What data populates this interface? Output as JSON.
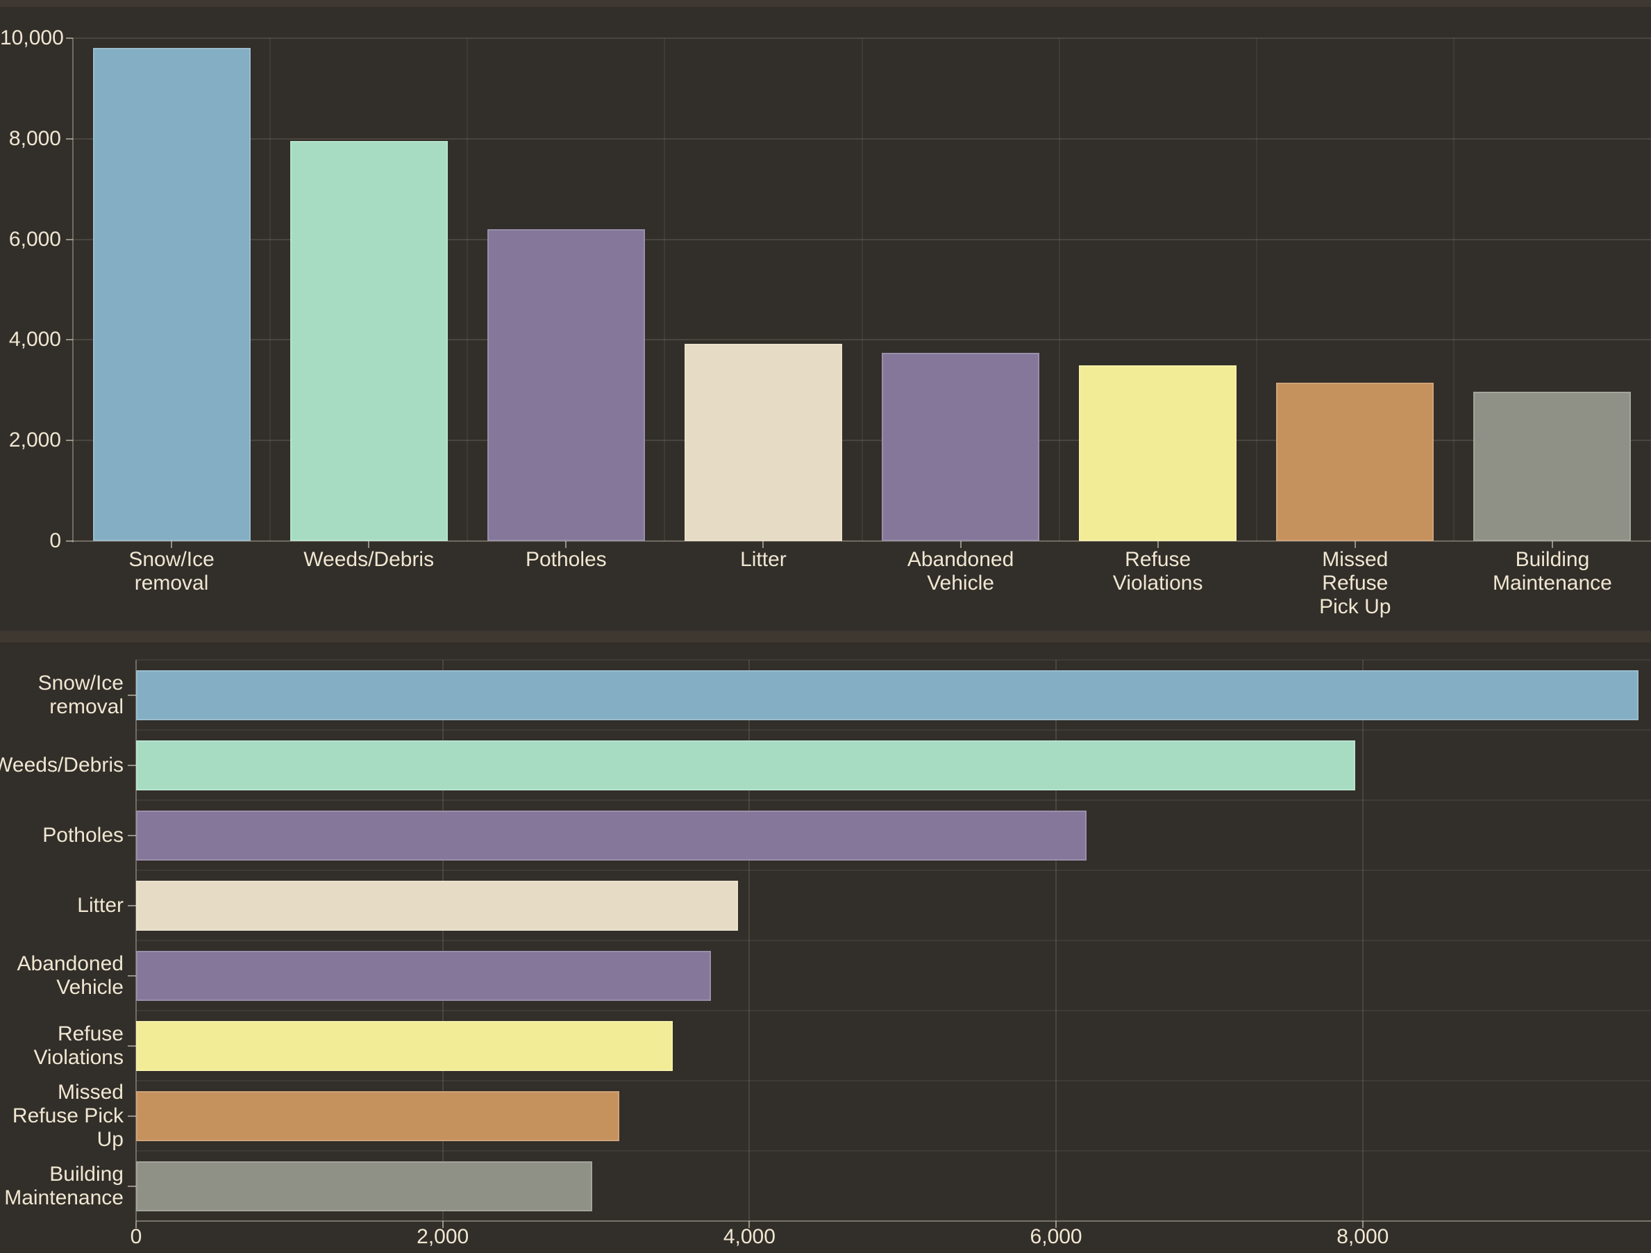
{
  "page": {
    "background": "#322e29",
    "panel_divider_color": "#3e3831",
    "text_color": "#f0e7d3",
    "gridline_color": "#4a453c"
  },
  "chart_data": [
    {
      "id": "top-column-chart",
      "type": "bar",
      "orientation": "vertical",
      "title": "",
      "xlabel": "",
      "ylabel": "",
      "categories": [
        "Snow/Ice removal",
        "Weeds/Debris",
        "Potholes",
        "Litter",
        "Abandoned Vehicle",
        "Refuse Violations",
        "Missed Refuse Pick Up",
        "Building Maintenance"
      ],
      "label_lines": [
        [
          "Snow/Ice",
          "removal"
        ],
        [
          "Weeds/Debris"
        ],
        [
          "Potholes"
        ],
        [
          "Litter"
        ],
        [
          "Abandoned",
          "Vehicle"
        ],
        [
          "Refuse",
          "Violations"
        ],
        [
          "Missed",
          "Refuse",
          "Pick Up"
        ],
        [
          "Building",
          "Maintenance"
        ]
      ],
      "values": [
        9800,
        7950,
        6200,
        3925,
        3750,
        3500,
        3150,
        2975
      ],
      "bar_colors": [
        "#84aec3",
        "#a8dcc2",
        "#847799",
        "#e6dbc4",
        "#847799",
        "#f2ec96",
        "#c5915c",
        "#8f9186"
      ],
      "ylim": [
        0,
        10000
      ],
      "yticks": [
        {
          "value": 0,
          "label": "0"
        },
        {
          "value": 2000,
          "label": "2,000"
        },
        {
          "value": 4000,
          "label": "4,000"
        },
        {
          "value": 6000,
          "label": "6,000"
        },
        {
          "value": 8000,
          "label": "8,000"
        },
        {
          "value": 10000,
          "label": "10,000"
        }
      ],
      "grid": true,
      "legend": false
    },
    {
      "id": "bottom-bar-chart",
      "type": "bar",
      "orientation": "horizontal",
      "title": "",
      "xlabel": "",
      "ylabel": "",
      "categories": [
        "Snow/Ice removal",
        "Weeds/Debris",
        "Potholes",
        "Litter",
        "Abandoned Vehicle",
        "Refuse Violations",
        "Missed Refuse Pick Up",
        "Building Maintenance"
      ],
      "label_lines": [
        [
          "Snow/Ice",
          "removal"
        ],
        [
          "Weeds/Debris"
        ],
        [
          "Potholes"
        ],
        [
          "Litter"
        ],
        [
          "Abandoned",
          "Vehicle"
        ],
        [
          "Refuse",
          "Violations"
        ],
        [
          "Missed",
          "Refuse Pick",
          "Up"
        ],
        [
          "Building",
          "Maintenance"
        ]
      ],
      "values": [
        9800,
        7950,
        6200,
        3925,
        3750,
        3500,
        3150,
        2975
      ],
      "bar_colors": [
        "#84aec3",
        "#a8dcc2",
        "#847799",
        "#e6dbc4",
        "#847799",
        "#f2ec96",
        "#c5915c",
        "#8f9186"
      ],
      "xlim": [
        0,
        9880
      ],
      "xticks": [
        {
          "value": 0,
          "label": "0"
        },
        {
          "value": 2000,
          "label": "2,000"
        },
        {
          "value": 4000,
          "label": "4,000"
        },
        {
          "value": 6000,
          "label": "6,000"
        },
        {
          "value": 8000,
          "label": "8,000"
        }
      ],
      "grid": true,
      "legend": false
    }
  ]
}
